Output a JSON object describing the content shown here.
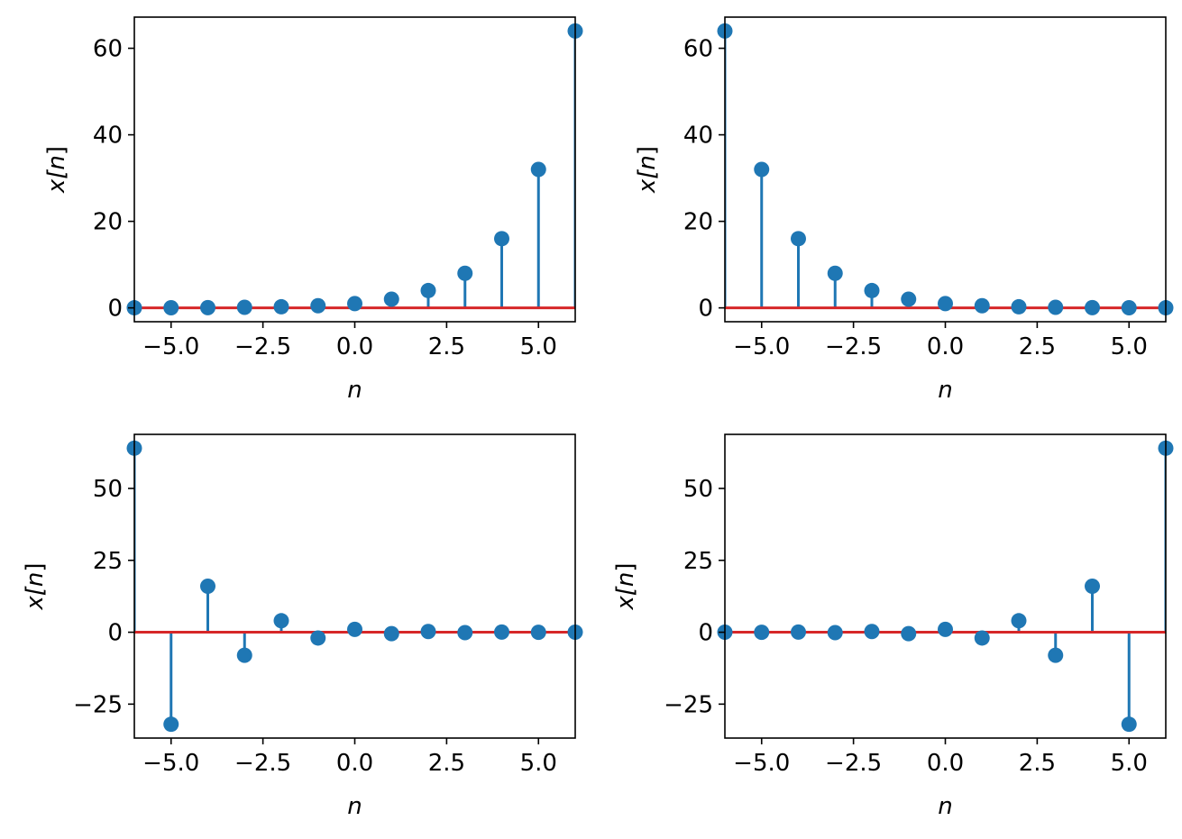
{
  "colors": {
    "stem": "#1f77b4",
    "baseline": "#d62728",
    "frame": "#000000"
  },
  "chart_data": [
    {
      "type": "stem",
      "xlabel": "n",
      "ylabel": {
        "pre": "x[",
        "var": "n",
        "post": "]"
      },
      "xlim": [
        -6,
        6
      ],
      "ylim": [
        -3.2,
        67.2
      ],
      "xticks": [
        -5.0,
        -2.5,
        0.0,
        2.5,
        5.0
      ],
      "xtick_labels": [
        "−5.0",
        "−2.5",
        "0.0",
        "2.5",
        "5.0"
      ],
      "yticks": [
        0,
        20,
        40,
        60
      ],
      "ytick_labels": [
        "0",
        "20",
        "40",
        "60"
      ],
      "x": [
        -6,
        -5,
        -4,
        -3,
        -2,
        -1,
        0,
        1,
        2,
        3,
        4,
        5,
        6
      ],
      "values": [
        0.015625,
        0.03125,
        0.0625,
        0.125,
        0.25,
        0.5,
        1,
        2,
        4,
        8,
        16,
        32,
        64
      ]
    },
    {
      "type": "stem",
      "xlabel": "n",
      "ylabel": {
        "pre": "x[",
        "var": "n",
        "post": "]"
      },
      "xlim": [
        -6,
        6
      ],
      "ylim": [
        -3.2,
        67.2
      ],
      "xticks": [
        -5.0,
        -2.5,
        0.0,
        2.5,
        5.0
      ],
      "xtick_labels": [
        "−5.0",
        "−2.5",
        "0.0",
        "2.5",
        "5.0"
      ],
      "yticks": [
        0,
        20,
        40,
        60
      ],
      "ytick_labels": [
        "0",
        "20",
        "40",
        "60"
      ],
      "x": [
        -6,
        -5,
        -4,
        -3,
        -2,
        -1,
        0,
        1,
        2,
        3,
        4,
        5,
        6
      ],
      "values": [
        64,
        32,
        16,
        8,
        4,
        2,
        1,
        0.5,
        0.25,
        0.125,
        0.0625,
        0.03125,
        0.015625
      ]
    },
    {
      "type": "stem",
      "xlabel": "n",
      "ylabel": {
        "pre": "x[",
        "var": "n",
        "post": "]"
      },
      "xlim": [
        -6,
        6
      ],
      "ylim": [
        -36.8,
        68.8
      ],
      "xticks": [
        -5.0,
        -2.5,
        0.0,
        2.5,
        5.0
      ],
      "xtick_labels": [
        "−5.0",
        "−2.5",
        "0.0",
        "2.5",
        "5.0"
      ],
      "yticks": [
        -25,
        0,
        25,
        50
      ],
      "ytick_labels": [
        "−25",
        "0",
        "25",
        "50"
      ],
      "x": [
        -6,
        -5,
        -4,
        -3,
        -2,
        -1,
        0,
        1,
        2,
        3,
        4,
        5,
        6
      ],
      "values": [
        64,
        -32,
        16,
        -8,
        4,
        -2,
        1,
        -0.5,
        0.25,
        -0.125,
        0.0625,
        -0.03125,
        0.015625
      ]
    },
    {
      "type": "stem",
      "xlabel": "n",
      "ylabel": {
        "pre": "x[",
        "var": "n",
        "post": "]"
      },
      "xlim": [
        -6,
        6
      ],
      "ylim": [
        -36.8,
        68.8
      ],
      "xticks": [
        -5.0,
        -2.5,
        0.0,
        2.5,
        5.0
      ],
      "xtick_labels": [
        "−5.0",
        "−2.5",
        "0.0",
        "2.5",
        "5.0"
      ],
      "yticks": [
        -25,
        0,
        25,
        50
      ],
      "ytick_labels": [
        "−25",
        "0",
        "25",
        "50"
      ],
      "x": [
        -6,
        -5,
        -4,
        -3,
        -2,
        -1,
        0,
        1,
        2,
        3,
        4,
        5,
        6
      ],
      "values": [
        0.015625,
        -0.03125,
        0.0625,
        -0.125,
        0.25,
        -0.5,
        1,
        -2,
        4,
        -8,
        16,
        -32,
        64
      ]
    }
  ]
}
